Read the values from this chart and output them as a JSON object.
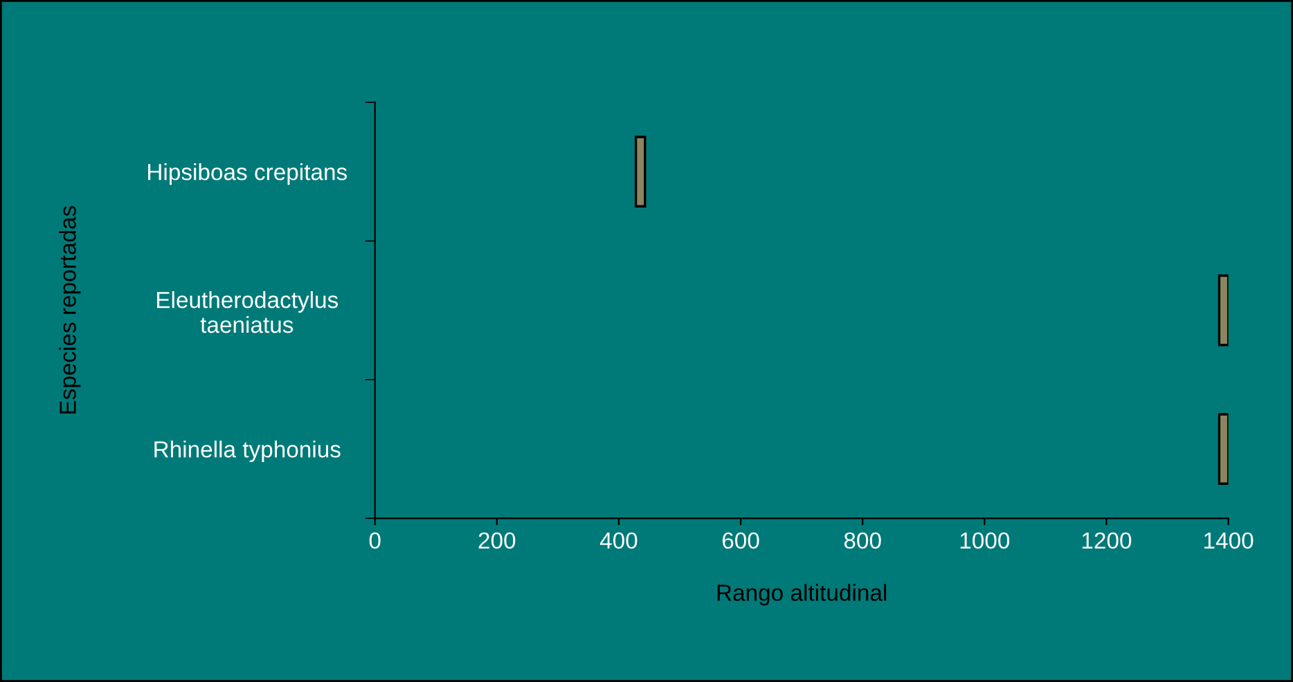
{
  "chart_data": {
    "type": "bar",
    "orientation": "horizontal",
    "categories": [
      "Hipsiboas crepitans",
      "Eleutherodactylus\ntaeniatus",
      "Rhinella typhonius"
    ],
    "base": [
      428,
      1385,
      1385
    ],
    "values": [
      15,
      15,
      15
    ],
    "color": "#8b8660",
    "xlabel": "Rango altitudinal",
    "ylabel": "Especies reportadas",
    "xlim": [
      0,
      1400
    ],
    "xticks": [
      0,
      200,
      400,
      600,
      800,
      1000,
      1200,
      1400
    ],
    "grid": false,
    "legend": false
  }
}
